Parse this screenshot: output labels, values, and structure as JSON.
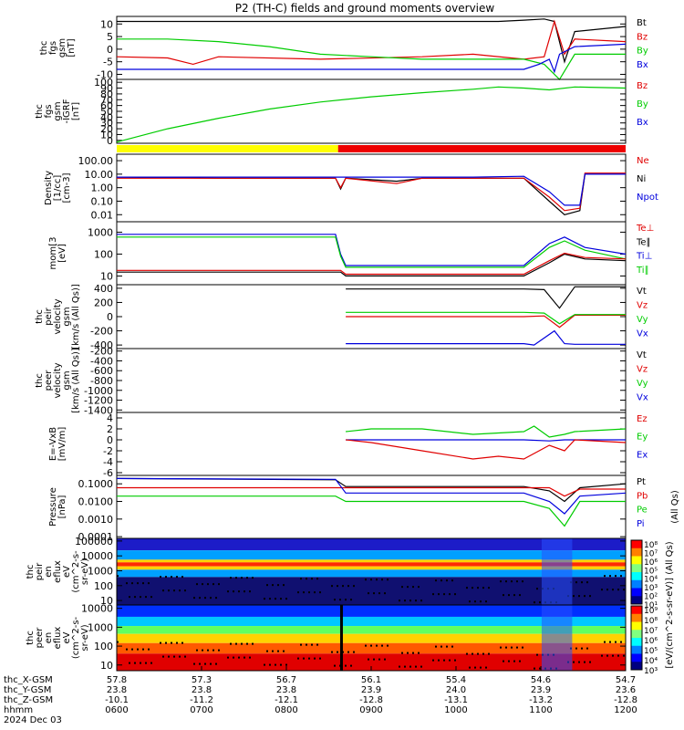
{
  "title": "P2 (TH-C) fields and ground moments overview",
  "colors": {
    "black": "#000000",
    "red": "#e00000",
    "green": "#00cc00",
    "blue": "#0000dd",
    "yellow": "#ffff00",
    "bar_red": "#ee0000"
  },
  "chart_data": [
    {
      "type": "line",
      "panel": "fgs",
      "ylabel_lines": [
        "thc",
        "fgs",
        "gsm",
        "[nT]"
      ],
      "yticks": [
        "10",
        "5",
        "0",
        "-5",
        "-10"
      ],
      "ylim": [
        -12,
        13
      ],
      "legend": [
        {
          "text": "Bt",
          "color": "black"
        },
        {
          "text": "Bz",
          "color": "red"
        },
        {
          "text": "By",
          "color": "green"
        },
        {
          "text": "Bx",
          "color": "blue"
        }
      ],
      "series": [
        {
          "name": "Bt",
          "color": "black",
          "x": [
            0.0,
            0.1,
            0.2,
            0.3,
            0.4,
            0.5,
            0.6,
            0.7,
            0.75,
            0.8,
            0.84,
            0.86,
            0.88,
            0.9,
            1.0
          ],
          "y": [
            11,
            11,
            11,
            11,
            11,
            11,
            11,
            11,
            11,
            11.5,
            12,
            11,
            -5,
            7,
            9
          ]
        },
        {
          "name": "Bz",
          "color": "red",
          "x": [
            0.0,
            0.1,
            0.15,
            0.2,
            0.4,
            0.6,
            0.7,
            0.8,
            0.84,
            0.86,
            0.88,
            0.9,
            1.0
          ],
          "y": [
            -3,
            -3.5,
            -6,
            -3,
            -4,
            -3,
            -2,
            -4,
            -3,
            11,
            -2,
            4,
            3
          ]
        },
        {
          "name": "By",
          "color": "green",
          "x": [
            0.0,
            0.1,
            0.2,
            0.3,
            0.4,
            0.5,
            0.6,
            0.7,
            0.8,
            0.84,
            0.87,
            0.9,
            1.0
          ],
          "y": [
            4,
            4,
            3,
            1,
            -2,
            -3,
            -4,
            -4,
            -4,
            -6,
            -12,
            -2,
            -2
          ]
        },
        {
          "name": "Bx",
          "color": "blue",
          "x": [
            0.0,
            0.1,
            0.2,
            0.3,
            0.4,
            0.5,
            0.6,
            0.7,
            0.8,
            0.83,
            0.85,
            0.86,
            0.87,
            0.9,
            1.0
          ],
          "y": [
            -8,
            -8,
            -8,
            -8,
            -8,
            -8,
            -8,
            -8,
            -8,
            -6,
            -4,
            -9,
            -2,
            1,
            2
          ]
        }
      ]
    },
    {
      "type": "line",
      "panel": "fgs-dsl",
      "ylabel_lines": [
        "thc",
        "fgs",
        "gsm",
        "-IGRF",
        "[nT]"
      ],
      "yticks": [
        "100",
        "90",
        "80",
        "70",
        "60",
        "50",
        "40",
        "30",
        "20",
        "10",
        "0"
      ],
      "ylim": [
        -5,
        105
      ],
      "legend": [
        {
          "text": "Bz",
          "color": "red"
        },
        {
          "text": "By",
          "color": "green"
        },
        {
          "text": "Bx",
          "color": "blue"
        }
      ],
      "series": [
        {
          "name": "By",
          "color": "green",
          "x": [
            0.0,
            0.1,
            0.2,
            0.3,
            0.4,
            0.5,
            0.6,
            0.7,
            0.75,
            0.8,
            0.85,
            0.9,
            1.0
          ],
          "y": [
            -3,
            20,
            38,
            54,
            66,
            75,
            82,
            88,
            92,
            90,
            87,
            92,
            90
          ]
        }
      ]
    },
    {
      "type": "bar",
      "panel": "region",
      "segments": [
        {
          "from": 0.0,
          "to": 0.435,
          "color": "yellow"
        },
        {
          "from": 0.435,
          "to": 1.0,
          "color": "bar_red"
        }
      ]
    },
    {
      "type": "line",
      "panel": "density",
      "ylabel_lines": [
        "Density",
        "[1/cc]",
        "[cm-3]"
      ],
      "log": true,
      "yticks": [
        "100.00",
        "10.00",
        "1.00",
        "0.10",
        "0.01"
      ],
      "ylim": [
        0.003,
        300
      ],
      "legend": [
        {
          "text": "Ne",
          "color": "red"
        },
        {
          "text": "Ni",
          "color": "black"
        },
        {
          "text": "Npot",
          "color": "blue"
        }
      ],
      "series": [
        {
          "name": "Ni",
          "color": "black",
          "x": [
            0.0,
            0.2,
            0.43,
            0.44,
            0.45,
            0.55,
            0.6,
            0.7,
            0.8,
            0.85,
            0.88,
            0.91,
            0.92,
            1.0
          ],
          "y": [
            6,
            5,
            5,
            0.8,
            5,
            3,
            5,
            5,
            5,
            0.1,
            0.01,
            0.02,
            10,
            10
          ]
        },
        {
          "name": "Ne",
          "color": "red",
          "x": [
            0.0,
            0.2,
            0.43,
            0.44,
            0.45,
            0.55,
            0.6,
            0.7,
            0.8,
            0.85,
            0.88,
            0.91,
            0.92,
            1.0
          ],
          "y": [
            5,
            5,
            5,
            1,
            5,
            2,
            5,
            5,
            5,
            0.2,
            0.02,
            0.03,
            12,
            12
          ]
        },
        {
          "name": "Npot",
          "color": "blue",
          "x": [
            0.0,
            0.2,
            0.43,
            0.5,
            0.7,
            0.8,
            0.85,
            0.88,
            0.91,
            0.92,
            1.0
          ],
          "y": [
            6,
            6,
            6,
            6,
            6,
            7,
            0.5,
            0.05,
            0.05,
            10,
            10
          ]
        }
      ]
    },
    {
      "type": "line",
      "panel": "temperature",
      "ylabel_lines": [
        "mom[3",
        "[eV]"
      ],
      "log": true,
      "yticks": [
        "1000",
        "100",
        "10"
      ],
      "ylim": [
        4,
        3000
      ],
      "legend": [
        {
          "text": "Te⊥",
          "color": "red"
        },
        {
          "text": "Te∥",
          "color": "black"
        },
        {
          "text": "Ti⊥",
          "color": "blue"
        },
        {
          "text": "Ti∥",
          "color": "green"
        }
      ],
      "series": [
        {
          "name": "Ti⊥",
          "color": "blue",
          "x": [
            0.0,
            0.2,
            0.43,
            0.44,
            0.45,
            0.6,
            0.8,
            0.85,
            0.88,
            0.92,
            1.0
          ],
          "y": [
            800,
            800,
            800,
            100,
            30,
            30,
            30,
            300,
            600,
            200,
            100
          ]
        },
        {
          "name": "Ti∥",
          "color": "green",
          "x": [
            0.0,
            0.2,
            0.43,
            0.44,
            0.45,
            0.6,
            0.8,
            0.85,
            0.88,
            0.92,
            1.0
          ],
          "y": [
            600,
            600,
            600,
            80,
            25,
            25,
            25,
            200,
            400,
            150,
            60
          ]
        },
        {
          "name": "Te∥",
          "color": "black",
          "x": [
            0.0,
            0.43,
            0.44,
            0.45,
            0.8,
            0.85,
            0.88,
            0.92,
            1.0
          ],
          "y": [
            15,
            15,
            15,
            10,
            10,
            40,
            100,
            60,
            50
          ]
        },
        {
          "name": "Te⊥",
          "color": "red",
          "x": [
            0.0,
            0.43,
            0.44,
            0.45,
            0.8,
            0.85,
            0.88,
            0.92,
            1.0
          ],
          "y": [
            18,
            18,
            18,
            12,
            12,
            50,
            110,
            70,
            60
          ]
        }
      ]
    },
    {
      "type": "line",
      "panel": "velocity-peir",
      "ylabel_lines": [
        "thc",
        "peir",
        "velocity",
        "gsm",
        "[km/s (All Qs)]"
      ],
      "yticks": [
        "400",
        "200",
        "0",
        "-200",
        "-400"
      ],
      "ylim": [
        -450,
        450
      ],
      "legend": [
        {
          "text": "Vt",
          "color": "black"
        },
        {
          "text": "Vz",
          "color": "red"
        },
        {
          "text": "Vy",
          "color": "green"
        },
        {
          "text": "Vx",
          "color": "blue"
        }
      ],
      "series": [
        {
          "name": "Vt",
          "color": "black",
          "x": [
            0.45,
            0.6,
            0.8,
            0.84,
            0.87,
            0.9,
            1.0
          ],
          "y": [
            390,
            390,
            390,
            380,
            120,
            420,
            420
          ]
        },
        {
          "name": "Vz",
          "color": "red",
          "x": [
            0.45,
            0.6,
            0.8,
            0.84,
            0.87,
            0.9,
            1.0
          ],
          "y": [
            0,
            0,
            0,
            10,
            -150,
            20,
            20
          ]
        },
        {
          "name": "Vy",
          "color": "green",
          "x": [
            0.45,
            0.6,
            0.8,
            0.84,
            0.87,
            0.9,
            1.0
          ],
          "y": [
            60,
            60,
            60,
            50,
            -100,
            30,
            30
          ]
        },
        {
          "name": "Vx",
          "color": "blue",
          "x": [
            0.45,
            0.6,
            0.8,
            0.82,
            0.86,
            0.88,
            0.9,
            1.0
          ],
          "y": [
            -380,
            -380,
            -380,
            -400,
            -200,
            -380,
            -390,
            -390
          ]
        }
      ]
    },
    {
      "type": "line",
      "panel": "velocity-peer",
      "ylabel_lines": [
        "thc",
        "peer",
        "velocity",
        "gsm",
        "[km/s (All Qs)]"
      ],
      "yticks": [
        "-200",
        "-400",
        "-600",
        "-800",
        "-1000",
        "-1200",
        "-1400"
      ],
      "ylim": [
        -1450,
        -150
      ],
      "legend": [
        {
          "text": "Vt",
          "color": "black"
        },
        {
          "text": "Vz",
          "color": "red"
        },
        {
          "text": "Vy",
          "color": "green"
        },
        {
          "text": "Vx",
          "color": "blue"
        }
      ],
      "series": []
    },
    {
      "type": "line",
      "panel": "efield",
      "ylabel_lines": [
        "E=-VxB",
        "[mV/m]"
      ],
      "yticks": [
        "4",
        "2",
        "0",
        "-2",
        "-4",
        "-6"
      ],
      "ylim": [
        -6.5,
        5
      ],
      "legend": [
        {
          "text": "Ez",
          "color": "red"
        },
        {
          "text": "Ey",
          "color": "green"
        },
        {
          "text": "Ex",
          "color": "blue"
        }
      ],
      "series": [
        {
          "name": "Ey",
          "color": "green",
          "x": [
            0.45,
            0.5,
            0.6,
            0.7,
            0.8,
            0.82,
            0.85,
            0.88,
            0.9,
            1.0
          ],
          "y": [
            1.5,
            2,
            2,
            1,
            1.5,
            2.5,
            0.5,
            1,
            1.5,
            2
          ]
        },
        {
          "name": "Ex",
          "color": "blue",
          "x": [
            0.45,
            0.6,
            0.8,
            0.85,
            0.88,
            1.0
          ],
          "y": [
            0,
            0,
            0,
            -0.2,
            0,
            0
          ]
        },
        {
          "name": "Ez",
          "color": "red",
          "x": [
            0.45,
            0.5,
            0.6,
            0.7,
            0.75,
            0.8,
            0.85,
            0.88,
            0.9,
            1.0
          ],
          "y": [
            0,
            -0.5,
            -2,
            -3.5,
            -3,
            -3.5,
            -1,
            -2,
            0,
            -0.5
          ]
        }
      ]
    },
    {
      "type": "line",
      "panel": "pressure",
      "ylabel_lines": [
        "Pressure",
        "[nPa]"
      ],
      "log": true,
      "yticks": [
        "0.1000",
        "0.0100",
        "0.0010",
        "0.0001"
      ],
      "ylim": [
        8e-05,
        0.3
      ],
      "legend": [
        {
          "text": "Pt",
          "color": "black"
        },
        {
          "text": "Pb",
          "color": "red"
        },
        {
          "text": "Pe",
          "color": "green"
        },
        {
          "text": "Pi",
          "color": "blue"
        }
      ],
      "side_label": "(All Qs)",
      "series": [
        {
          "name": "Pt",
          "color": "black",
          "x": [
            0.0,
            0.43,
            0.45,
            0.8,
            0.85,
            0.88,
            0.91,
            1.0
          ],
          "y": [
            0.2,
            0.17,
            0.07,
            0.07,
            0.04,
            0.01,
            0.06,
            0.1
          ]
        },
        {
          "name": "Pb",
          "color": "red",
          "x": [
            0.0,
            0.43,
            0.45,
            0.8,
            0.85,
            0.88,
            0.91,
            1.0
          ],
          "y": [
            0.06,
            0.06,
            0.06,
            0.06,
            0.06,
            0.02,
            0.05,
            0.05
          ]
        },
        {
          "name": "Pi",
          "color": "blue",
          "x": [
            0.0,
            0.43,
            0.45,
            0.8,
            0.85,
            0.88,
            0.91,
            1.0
          ],
          "y": [
            0.2,
            0.18,
            0.03,
            0.03,
            0.01,
            0.002,
            0.02,
            0.03
          ]
        },
        {
          "name": "Pe",
          "color": "green",
          "x": [
            0.0,
            0.43,
            0.45,
            0.8,
            0.85,
            0.88,
            0.91,
            1.0
          ],
          "y": [
            0.02,
            0.02,
            0.01,
            0.01,
            0.004,
            0.0004,
            0.01,
            0.01
          ]
        }
      ]
    },
    {
      "type": "heatmap",
      "panel": "peir-spectrogram",
      "ylabel_lines": [
        "thc",
        "peir",
        "en",
        "eflux",
        "eV",
        "(cm^2-s-",
        "sr-eV)"
      ],
      "yticks": [
        "100000",
        "10000",
        "1000",
        "100",
        "10"
      ],
      "log": true
    },
    {
      "type": "heatmap",
      "panel": "peer-spectrogram",
      "ylabel_lines": [
        "thc",
        "peer",
        "en",
        "eflux",
        "eV",
        "(cm^2-s-",
        "sr-eV)"
      ],
      "yticks": [
        "10000",
        "1000",
        "100",
        "10"
      ],
      "log": true
    }
  ],
  "colorbar": {
    "top": {
      "ticks": [
        "10⁸",
        "10⁷",
        "10⁶",
        "10⁵",
        "10⁴",
        "10³",
        "10²",
        "10¹"
      ]
    },
    "bottom": {
      "ticks": [
        "10⁹",
        "10⁸",
        "10⁷",
        "10⁶",
        "10⁵",
        "10⁴",
        "10³"
      ]
    },
    "label": "[eV/(cm^2-s-sr-eV)] (All Qs)"
  },
  "xaxis": {
    "rows": [
      {
        "label": "thc_X-GSM",
        "values": [
          "57.8",
          "57.3",
          "56.7",
          "56.1",
          "55.4",
          "54.6",
          "54.7"
        ]
      },
      {
        "label": "thc_Y-GSM",
        "values": [
          "23.8",
          "23.8",
          "23.8",
          "23.9",
          "24.0",
          "23.9",
          "23.6"
        ]
      },
      {
        "label": "thc_Z-GSM",
        "values": [
          "-10.1",
          "-11.2",
          "-12.1",
          "-12.8",
          "-13.1",
          "-13.2",
          "-12.8"
        ]
      },
      {
        "label": "hhmm",
        "values": [
          "0600",
          "0700",
          "0800",
          "0900",
          "1000",
          "1100",
          "1200"
        ]
      }
    ],
    "date": "2024 Dec 03"
  }
}
